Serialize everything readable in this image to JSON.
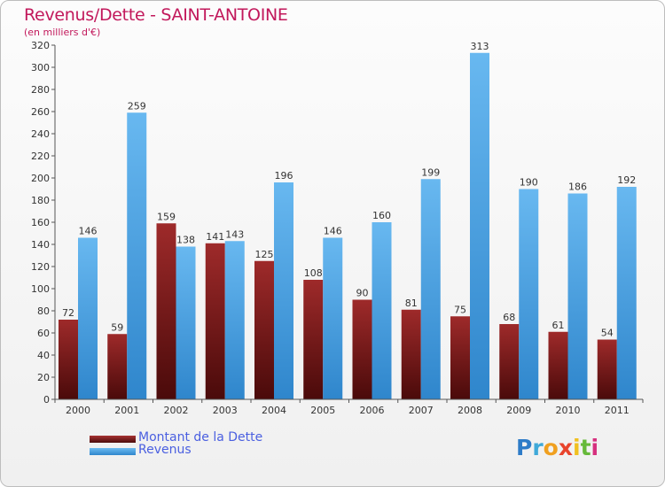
{
  "chart_data": {
    "type": "bar",
    "title": "Revenus/Dette - SAINT-ANTOINE",
    "subtitle": "(en milliers d'€)",
    "categories": [
      "2000",
      "2001",
      "2002",
      "2003",
      "2004",
      "2005",
      "2006",
      "2007",
      "2008",
      "2009",
      "2010",
      "2011"
    ],
    "series": [
      {
        "name": "Montant de la Dette",
        "color": "#7a1a1a",
        "values": [
          72,
          59,
          159,
          141,
          125,
          108,
          90,
          81,
          75,
          68,
          61,
          54
        ]
      },
      {
        "name": "Revenus",
        "color": "#4aa3e4",
        "values": [
          146,
          259,
          138,
          143,
          196,
          146,
          160,
          199,
          313,
          190,
          186,
          192
        ]
      }
    ],
    "ylim": [
      0,
      320
    ],
    "yticks": [
      0,
      20,
      40,
      60,
      80,
      100,
      120,
      140,
      160,
      180,
      200,
      220,
      240,
      260,
      280,
      300,
      320
    ],
    "grid": false,
    "legend_position": "bottom-left"
  },
  "logo": {
    "text": "Proxiti",
    "letter_colors": [
      "#2e7cc8",
      "#3fa9d9",
      "#f0a020",
      "#e8442c",
      "#f0c020",
      "#66b93a",
      "#d6307e"
    ]
  }
}
